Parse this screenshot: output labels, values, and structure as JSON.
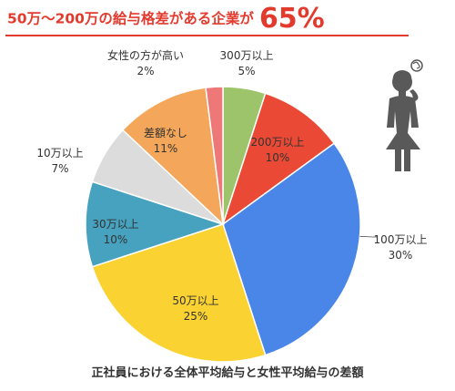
{
  "headline": {
    "lead": "50万〜200万の給与格差がある企業が",
    "value": "65%"
  },
  "caption": "正社員における全体平均給与と女性平均給与の差額",
  "icon": "worried-woman-icon",
  "colors": {
    "accent": "#e23b2e",
    "figure": "#595959"
  },
  "chart_data": {
    "type": "pie",
    "title": "",
    "slices": [
      {
        "label": "300万以上",
        "value": 5,
        "display": "5%",
        "color": "#9ec46b"
      },
      {
        "label": "200万以上",
        "value": 10,
        "display": "10%",
        "color": "#ea4a35"
      },
      {
        "label": "100万以上",
        "value": 30,
        "display": "30%",
        "color": "#4a86e8"
      },
      {
        "label": "50万以上",
        "value": 25,
        "display": "25%",
        "color": "#fad232"
      },
      {
        "label": "30万以上",
        "value": 10,
        "display": "10%",
        "color": "#46a2bf"
      },
      {
        "label": "10万以上",
        "value": 7,
        "display": "7%",
        "color": "#dcdcdc"
      },
      {
        "label": "差額なし",
        "value": 11,
        "display": "11%",
        "color": "#f4a75a"
      },
      {
        "label": "女性の方が高い",
        "value": 2,
        "display": "2%",
        "color": "#ee7777"
      }
    ]
  }
}
